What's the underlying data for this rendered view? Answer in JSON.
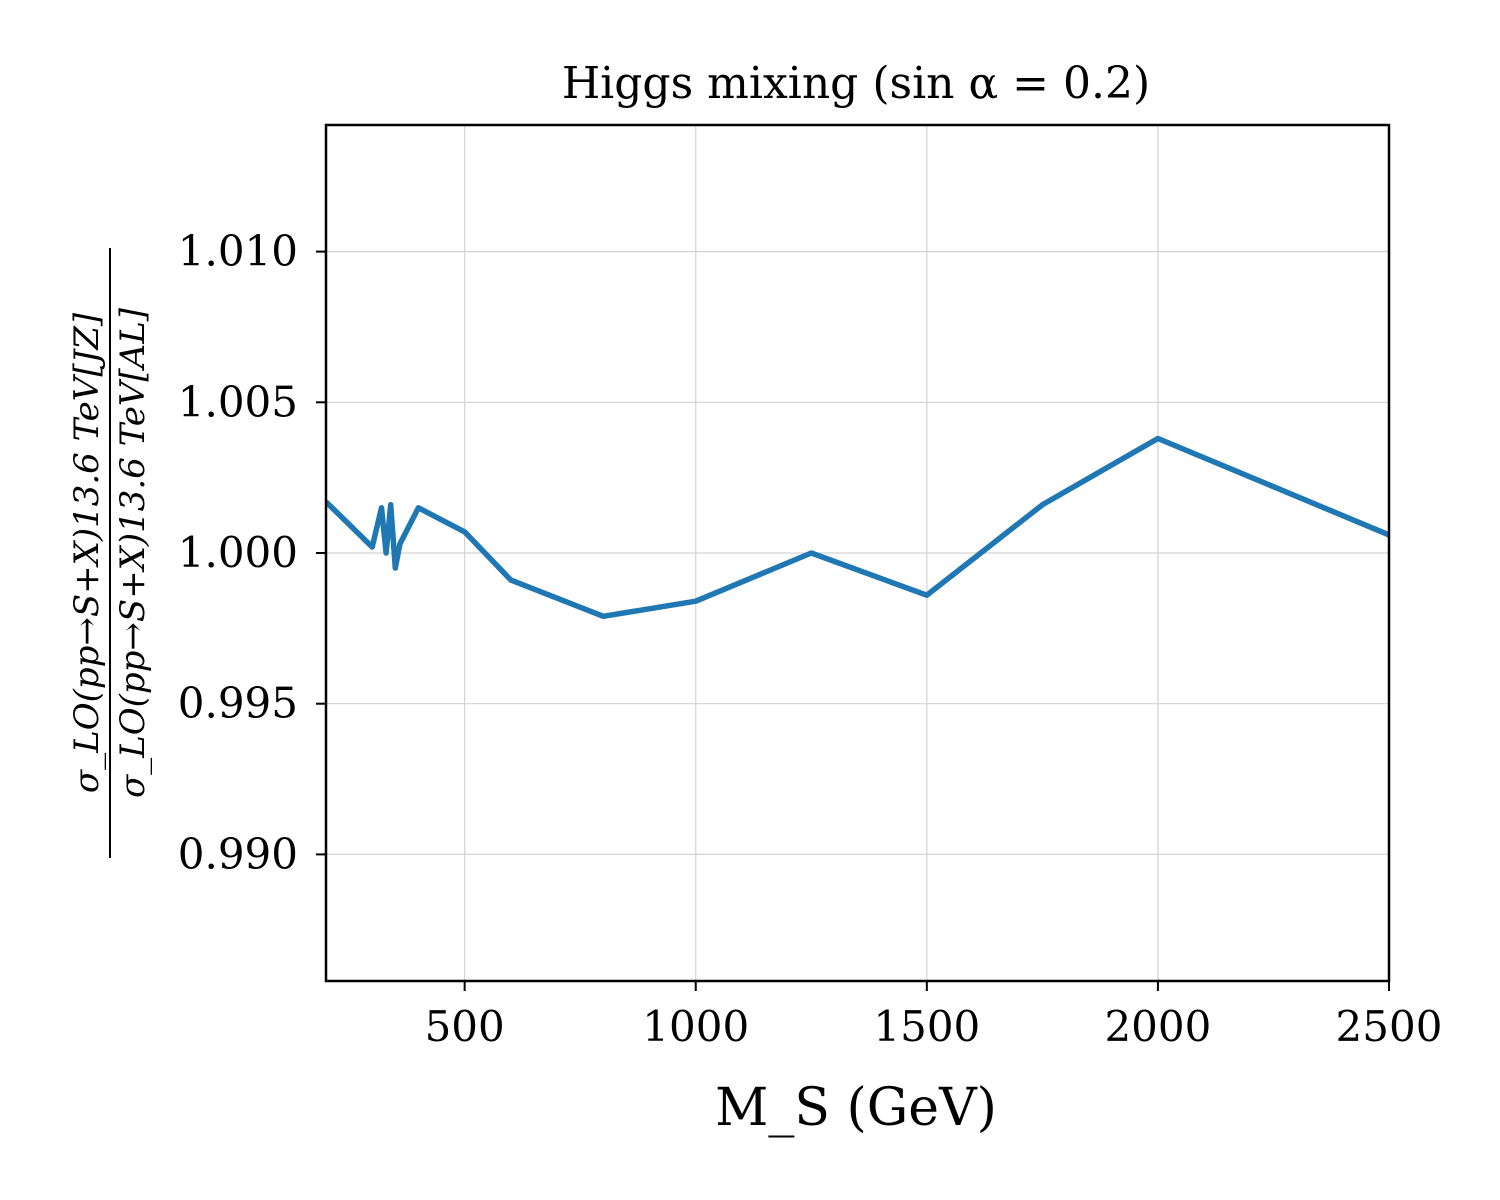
{
  "chart_data": {
    "type": "line",
    "title": "Higgs mixing (sin α = 0.2)",
    "xlabel": "M_S (GeV)",
    "ylabel": {
      "numerator": "σ_LO(pp→S+X)13.6  TeV[JZ]",
      "denominator": "σ_LO(pp→S+X)13.6  TeV[AL]"
    },
    "xlim": [
      200,
      2500
    ],
    "ylim": [
      0.9858,
      1.0142
    ],
    "xticks": [
      500,
      1000,
      1500,
      2000,
      2500
    ],
    "xtick_labels": [
      "500",
      "1000",
      "1500",
      "2000",
      "2500"
    ],
    "yticks": [
      0.99,
      0.995,
      1.0,
      1.005,
      1.01
    ],
    "ytick_labels": [
      "0.990",
      "0.995",
      "1.000",
      "1.005",
      "1.010"
    ],
    "grid": true,
    "colors": {
      "line": "#1f77b4",
      "grid": "#d3d3d3",
      "axes": "#000000"
    },
    "series": [
      {
        "x": [
          200,
          300,
          320,
          330,
          340,
          350,
          360,
          400,
          500,
          600,
          800,
          1000,
          1250,
          1500,
          1750,
          2000,
          2250,
          2500
        ],
        "values": [
          1.0017,
          1.0002,
          1.0015,
          1.0,
          1.0016,
          0.9995,
          1.0003,
          1.0015,
          1.0007,
          0.9991,
          0.9979,
          0.9984,
          1.0,
          0.9986,
          1.0016,
          1.0038,
          1.0022,
          1.0006
        ]
      }
    ]
  }
}
